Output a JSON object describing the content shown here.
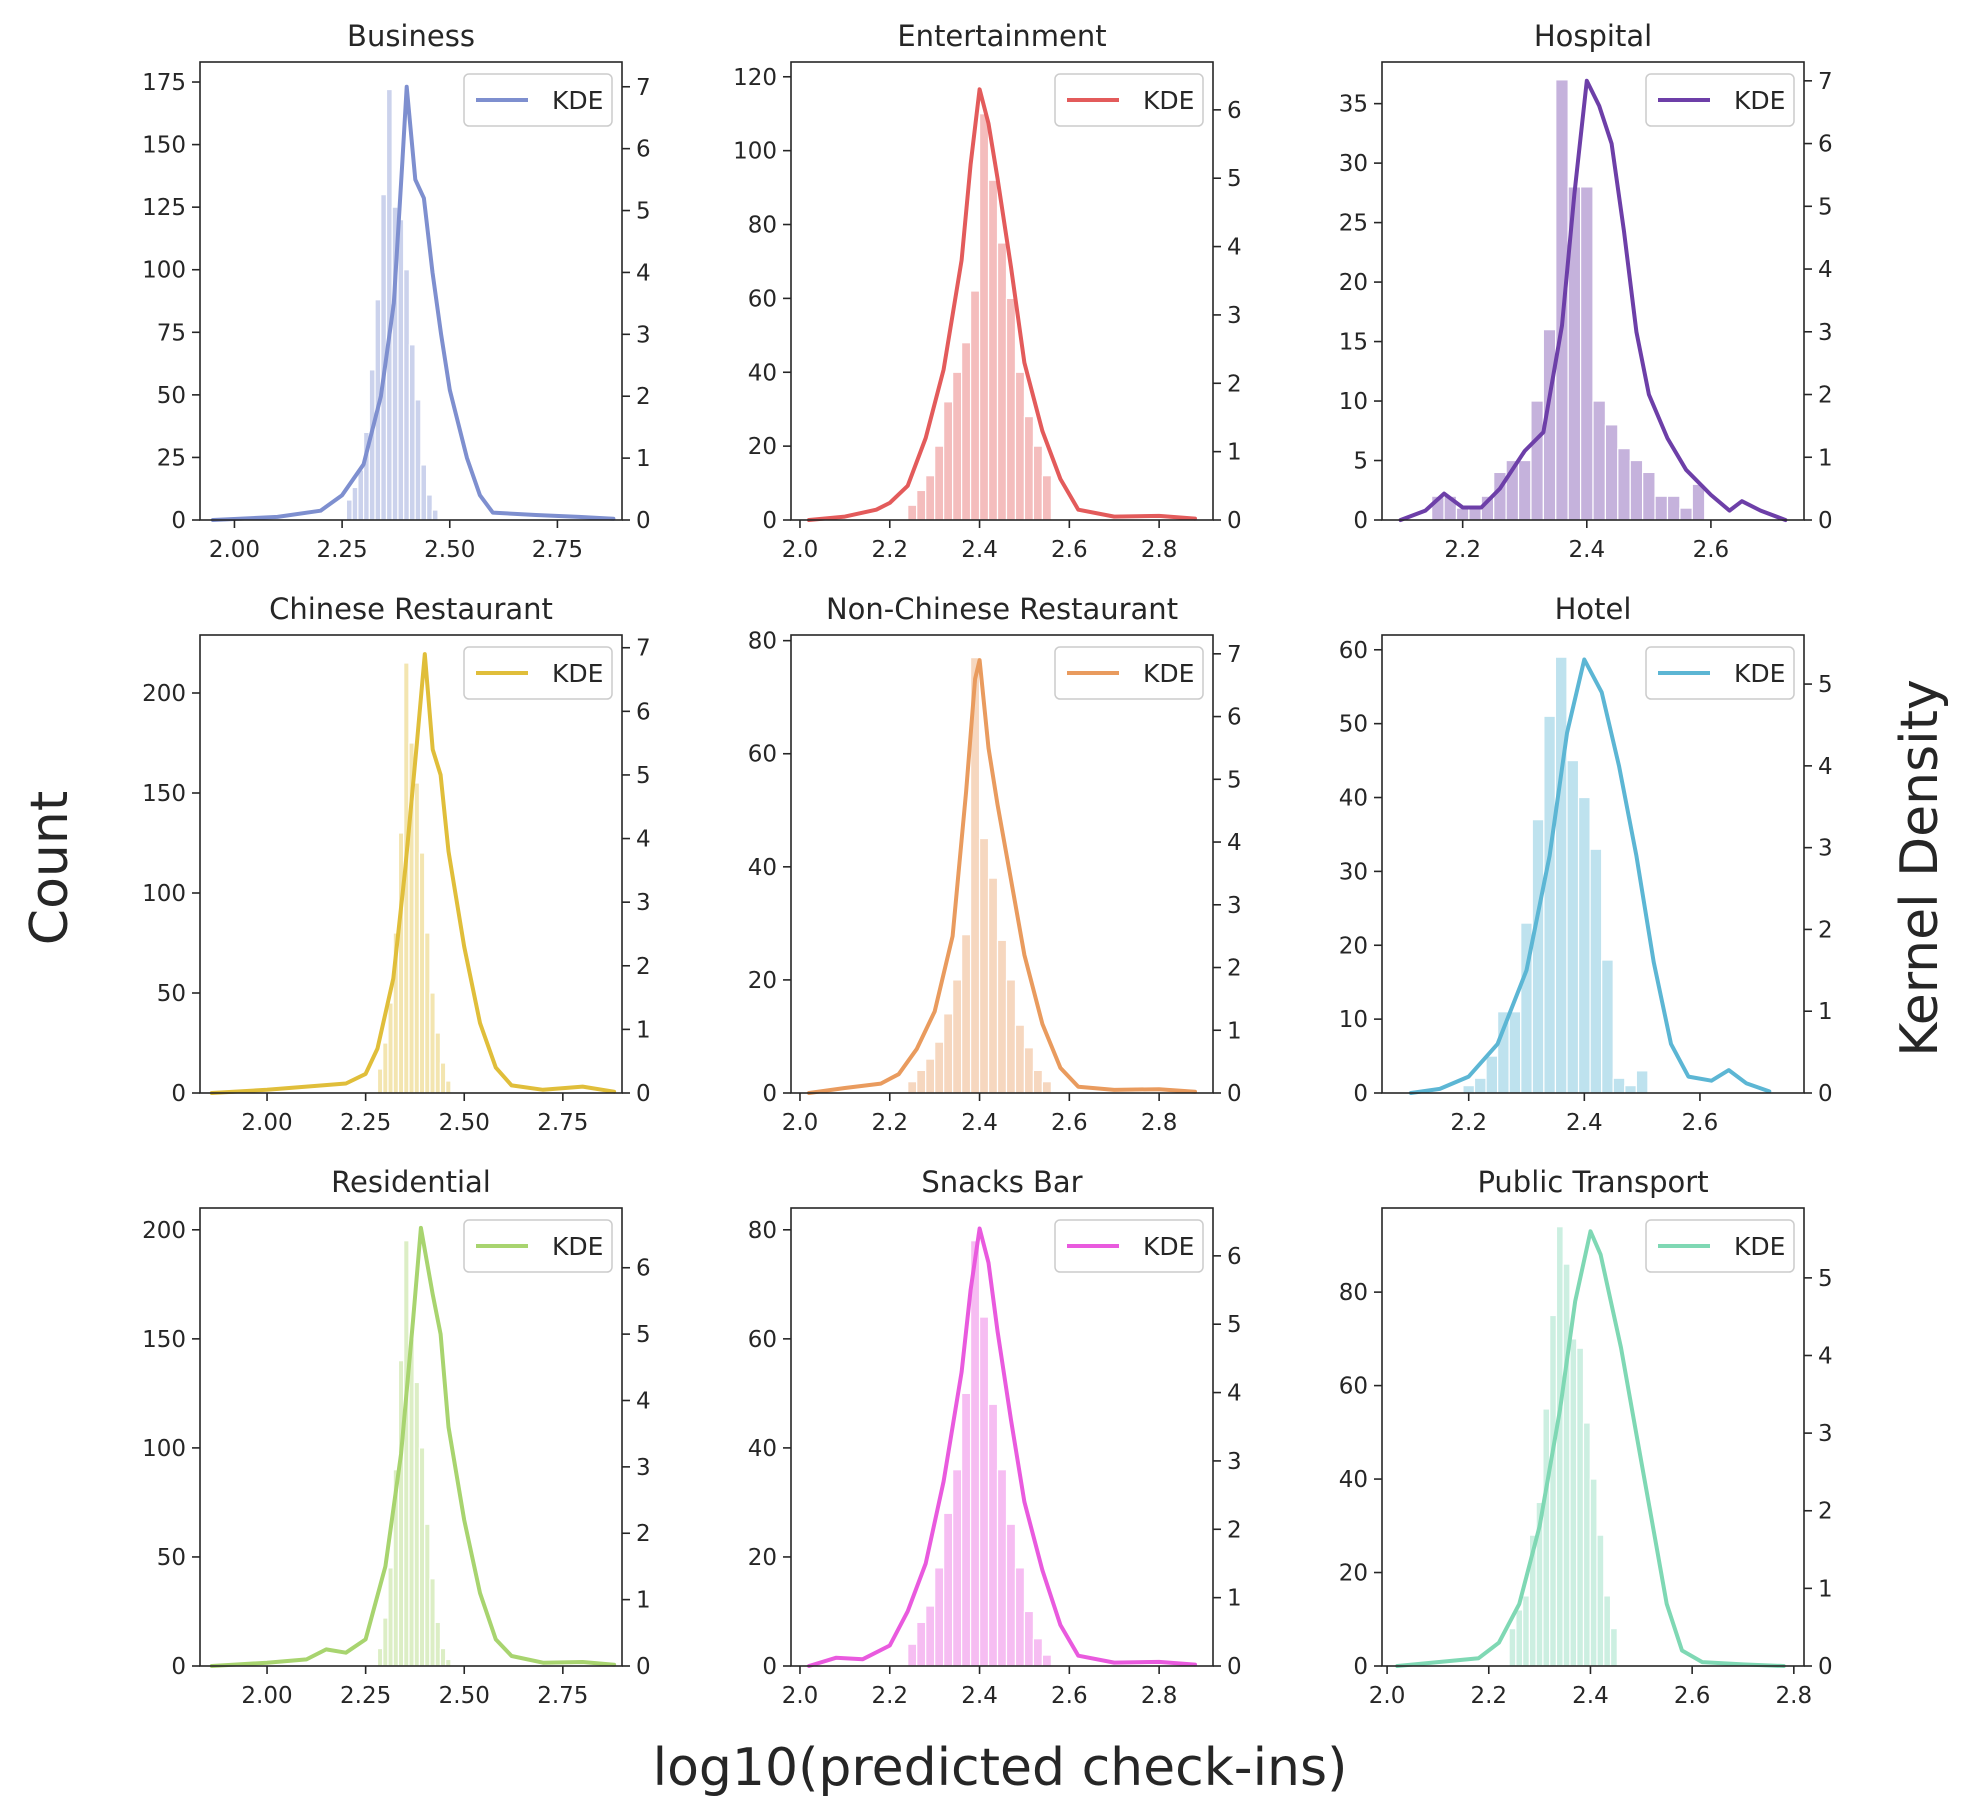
{
  "figure": {
    "ylabel_left": "Count",
    "ylabel_right": "Kernel Density",
    "xlabel": "log10(predicted check-ins)",
    "legend_label": "KDE",
    "legend_placement": "top-right"
  },
  "chart_data": [
    {
      "type": "bar",
      "title": "Business",
      "color": "#7e8fcf",
      "xlim": [
        1.92,
        2.9
      ],
      "xticks": [
        2.0,
        2.25,
        2.5,
        2.75
      ],
      "xtick_labels": [
        "2.00",
        "2.25",
        "2.50",
        "2.75"
      ],
      "ylim": [
        0,
        183
      ],
      "yticks": [
        0,
        25,
        50,
        75,
        100,
        125,
        150,
        175
      ],
      "y2lim": [
        0,
        7.4
      ],
      "y2ticks": [
        0,
        1,
        2,
        3,
        4,
        5,
        6,
        7
      ],
      "bin_start": 2.26,
      "bin_width": 0.0133,
      "counts": [
        8,
        13,
        20,
        35,
        60,
        88,
        130,
        172,
        125,
        120,
        100,
        70,
        48,
        22,
        10,
        4
      ],
      "kde_x": [
        1.95,
        2.1,
        2.2,
        2.25,
        2.3,
        2.34,
        2.37,
        2.39,
        2.4,
        2.42,
        2.44,
        2.46,
        2.48,
        2.5,
        2.54,
        2.57,
        2.6,
        2.7,
        2.8,
        2.88
      ],
      "kde_y": [
        0,
        0.05,
        0.15,
        0.4,
        0.9,
        2.0,
        3.5,
        5.8,
        7.0,
        5.5,
        5.2,
        4.0,
        3.0,
        2.1,
        1.0,
        0.4,
        0.12,
        0.08,
        0.05,
        0.02
      ]
    },
    {
      "type": "bar",
      "title": "Entertainment",
      "color": "#e35b5b",
      "xlim": [
        1.98,
        2.92
      ],
      "xticks": [
        2.0,
        2.2,
        2.4,
        2.6,
        2.8
      ],
      "xtick_labels": [
        "2.0",
        "2.2",
        "2.4",
        "2.6",
        "2.8"
      ],
      "ylim": [
        0,
        124
      ],
      "yticks": [
        0,
        20,
        40,
        60,
        80,
        100,
        120
      ],
      "y2lim": [
        0,
        6.7
      ],
      "y2ticks": [
        0,
        1,
        2,
        3,
        4,
        5,
        6
      ],
      "bin_start": 2.24,
      "bin_width": 0.02,
      "counts": [
        4,
        8,
        12,
        20,
        32,
        40,
        48,
        62,
        110,
        92,
        75,
        60,
        40,
        28,
        20,
        12
      ],
      "kde_x": [
        2.02,
        2.1,
        2.17,
        2.2,
        2.24,
        2.28,
        2.32,
        2.36,
        2.38,
        2.4,
        2.42,
        2.44,
        2.47,
        2.5,
        2.54,
        2.58,
        2.62,
        2.7,
        2.8,
        2.88
      ],
      "kde_y": [
        0,
        0.05,
        0.15,
        0.25,
        0.5,
        1.2,
        2.2,
        3.8,
        5.2,
        6.3,
        5.8,
        5.0,
        3.7,
        2.3,
        1.3,
        0.6,
        0.15,
        0.05,
        0.06,
        0.02
      ]
    },
    {
      "type": "bar",
      "title": "Hospital",
      "color": "#6d3fa8",
      "xlim": [
        2.07,
        2.75
      ],
      "xticks": [
        2.2,
        2.4,
        2.6
      ],
      "xtick_labels": [
        "2.2",
        "2.4",
        "2.6"
      ],
      "ylim": [
        0,
        38.5
      ],
      "yticks": [
        0,
        5,
        10,
        15,
        20,
        25,
        30,
        35
      ],
      "y2lim": [
        0,
        7.3
      ],
      "y2ticks": [
        0,
        1,
        2,
        3,
        4,
        5,
        6,
        7
      ],
      "bin_start": 2.15,
      "bin_width": 0.02,
      "counts": [
        2,
        2,
        1,
        1,
        2,
        4,
        5,
        5,
        10,
        16,
        37,
        28,
        28,
        10,
        8,
        6,
        5,
        4,
        2,
        2,
        1,
        3
      ],
      "kde_x": [
        2.1,
        2.14,
        2.17,
        2.2,
        2.23,
        2.26,
        2.3,
        2.33,
        2.36,
        2.38,
        2.4,
        2.42,
        2.44,
        2.46,
        2.48,
        2.5,
        2.53,
        2.56,
        2.6,
        2.63,
        2.65,
        2.68,
        2.72
      ],
      "kde_y": [
        0,
        0.15,
        0.42,
        0.2,
        0.2,
        0.5,
        1.1,
        1.4,
        3.1,
        5.2,
        7.0,
        6.6,
        6.0,
        4.6,
        3.0,
        2.0,
        1.3,
        0.8,
        0.4,
        0.15,
        0.3,
        0.15,
        0
      ]
    },
    {
      "type": "bar",
      "title": "Chinese Restaurant",
      "color": "#e0be3a",
      "xlim": [
        1.83,
        2.9
      ],
      "xticks": [
        2.0,
        2.25,
        2.5,
        2.75
      ],
      "xtick_labels": [
        "2.00",
        "2.25",
        "2.50",
        "2.75"
      ],
      "ylim": [
        0,
        229
      ],
      "yticks": [
        0,
        50,
        100,
        150,
        200
      ],
      "y2lim": [
        0,
        7.2
      ],
      "y2ticks": [
        0,
        1,
        2,
        3,
        4,
        5,
        6,
        7
      ],
      "bin_start": 2.28,
      "bin_width": 0.0133,
      "counts": [
        12,
        25,
        45,
        80,
        130,
        215,
        175,
        155,
        120,
        80,
        50,
        30,
        15,
        6
      ],
      "kde_x": [
        1.86,
        2.0,
        2.1,
        2.2,
        2.25,
        2.28,
        2.32,
        2.35,
        2.38,
        2.4,
        2.42,
        2.44,
        2.46,
        2.5,
        2.54,
        2.58,
        2.62,
        2.7,
        2.8,
        2.88
      ],
      "kde_y": [
        0,
        0.05,
        0.1,
        0.15,
        0.3,
        0.7,
        1.8,
        3.5,
        5.5,
        6.9,
        5.4,
        5.0,
        3.8,
        2.3,
        1.1,
        0.4,
        0.12,
        0.05,
        0.1,
        0.02
      ]
    },
    {
      "type": "bar",
      "title": "Non-Chinese Restaurant",
      "color": "#e99b5e",
      "xlim": [
        1.98,
        2.92
      ],
      "xticks": [
        2.0,
        2.2,
        2.4,
        2.6,
        2.8
      ],
      "xtick_labels": [
        "2.0",
        "2.2",
        "2.4",
        "2.6",
        "2.8"
      ],
      "ylim": [
        0,
        81
      ],
      "yticks": [
        0,
        20,
        40,
        60,
        80
      ],
      "y2lim": [
        0,
        7.3
      ],
      "y2ticks": [
        0,
        1,
        2,
        3,
        4,
        5,
        6,
        7
      ],
      "bin_start": 2.24,
      "bin_width": 0.02,
      "counts": [
        2,
        4,
        6,
        9,
        14,
        20,
        28,
        77,
        45,
        38,
        27,
        20,
        12,
        8,
        4,
        2
      ],
      "kde_x": [
        2.02,
        2.1,
        2.18,
        2.22,
        2.26,
        2.3,
        2.34,
        2.37,
        2.39,
        2.4,
        2.42,
        2.44,
        2.47,
        2.5,
        2.54,
        2.58,
        2.62,
        2.7,
        2.8,
        2.88
      ],
      "kde_y": [
        0,
        0.08,
        0.15,
        0.3,
        0.7,
        1.3,
        2.5,
        4.8,
        6.6,
        6.9,
        5.5,
        4.6,
        3.4,
        2.2,
        1.1,
        0.4,
        0.1,
        0.05,
        0.06,
        0.02
      ]
    },
    {
      "type": "bar",
      "title": "Hotel",
      "color": "#5cb6d4",
      "xlim": [
        2.05,
        2.78
      ],
      "xticks": [
        2.2,
        2.4,
        2.6
      ],
      "xtick_labels": [
        "2.2",
        "2.4",
        "2.6"
      ],
      "ylim": [
        0,
        62
      ],
      "yticks": [
        0,
        10,
        20,
        30,
        40,
        50,
        60
      ],
      "y2lim": [
        0,
        5.6
      ],
      "y2ticks": [
        0,
        1,
        2,
        3,
        4,
        5
      ],
      "bin_start": 2.19,
      "bin_width": 0.02,
      "counts": [
        1,
        2,
        5,
        11,
        11,
        23,
        37,
        51,
        59,
        45,
        40,
        33,
        18,
        2,
        1,
        3
      ],
      "kde_x": [
        2.1,
        2.15,
        2.2,
        2.25,
        2.3,
        2.34,
        2.37,
        2.4,
        2.43,
        2.46,
        2.49,
        2.52,
        2.55,
        2.58,
        2.62,
        2.65,
        2.68,
        2.72
      ],
      "kde_y": [
        0,
        0.05,
        0.2,
        0.6,
        1.5,
        2.9,
        4.4,
        5.3,
        4.9,
        4.0,
        2.9,
        1.6,
        0.6,
        0.2,
        0.15,
        0.28,
        0.12,
        0.02
      ]
    },
    {
      "type": "bar",
      "title": "Residential",
      "color": "#a8d46f",
      "xlim": [
        1.83,
        2.9
      ],
      "xticks": [
        2.0,
        2.25,
        2.5,
        2.75
      ],
      "xtick_labels": [
        "2.00",
        "2.25",
        "2.50",
        "2.75"
      ],
      "ylim": [
        0,
        210
      ],
      "yticks": [
        0,
        50,
        100,
        150,
        200
      ],
      "y2lim": [
        0,
        6.9
      ],
      "y2ticks": [
        0,
        1,
        2,
        3,
        4,
        5,
        6
      ],
      "bin_start": 2.28,
      "bin_width": 0.0133,
      "counts": [
        8,
        22,
        45,
        90,
        140,
        195,
        150,
        130,
        100,
        65,
        40,
        20,
        8,
        3
      ],
      "kde_x": [
        1.86,
        2.0,
        2.1,
        2.15,
        2.2,
        2.25,
        2.3,
        2.34,
        2.37,
        2.39,
        2.42,
        2.44,
        2.46,
        2.5,
        2.54,
        2.58,
        2.62,
        2.7,
        2.8,
        2.88
      ],
      "kde_y": [
        0,
        0.05,
        0.1,
        0.25,
        0.2,
        0.4,
        1.5,
        3.2,
        5.2,
        6.6,
        5.6,
        5.0,
        3.6,
        2.2,
        1.1,
        0.4,
        0.15,
        0.05,
        0.06,
        0.02
      ]
    },
    {
      "type": "bar",
      "title": "Snacks Bar",
      "color": "#e95ade",
      "xlim": [
        1.98,
        2.92
      ],
      "xticks": [
        2.0,
        2.2,
        2.4,
        2.6,
        2.8
      ],
      "xtick_labels": [
        "2.0",
        "2.2",
        "2.4",
        "2.6",
        "2.8"
      ],
      "ylim": [
        0,
        84
      ],
      "yticks": [
        0,
        20,
        40,
        60,
        80
      ],
      "y2lim": [
        0,
        6.7
      ],
      "y2ticks": [
        0,
        1,
        2,
        3,
        4,
        5,
        6
      ],
      "bin_start": 2.24,
      "bin_width": 0.02,
      "counts": [
        4,
        8,
        11,
        18,
        28,
        36,
        50,
        78,
        64,
        48,
        36,
        26,
        18,
        10,
        5,
        2
      ],
      "kde_x": [
        2.02,
        2.08,
        2.14,
        2.2,
        2.24,
        2.28,
        2.32,
        2.36,
        2.38,
        2.4,
        2.42,
        2.44,
        2.47,
        2.5,
        2.54,
        2.58,
        2.62,
        2.7,
        2.8,
        2.88
      ],
      "kde_y": [
        0,
        0.12,
        0.1,
        0.3,
        0.8,
        1.5,
        2.7,
        4.3,
        5.5,
        6.4,
        5.9,
        4.9,
        3.6,
        2.4,
        1.4,
        0.6,
        0.15,
        0.05,
        0.06,
        0.02
      ]
    },
    {
      "type": "bar",
      "title": "Public Transport",
      "color": "#7fd8b4",
      "xlim": [
        1.99,
        2.82
      ],
      "xticks": [
        2.0,
        2.2,
        2.4,
        2.6,
        2.8
      ],
      "xtick_labels": [
        "2.0",
        "2.2",
        "2.4",
        "2.6",
        "2.8"
      ],
      "ylim": [
        0,
        98
      ],
      "yticks": [
        0,
        20,
        40,
        60,
        80
      ],
      "y2lim": [
        0,
        5.9
      ],
      "y2ticks": [
        0,
        1,
        2,
        3,
        4,
        5
      ],
      "bin_start": 2.24,
      "bin_width": 0.0133,
      "counts": [
        8,
        12,
        15,
        28,
        35,
        55,
        75,
        94,
        86,
        70,
        68,
        52,
        40,
        28,
        15,
        8
      ],
      "kde_x": [
        2.02,
        2.1,
        2.18,
        2.22,
        2.26,
        2.3,
        2.34,
        2.37,
        2.4,
        2.42,
        2.44,
        2.46,
        2.49,
        2.52,
        2.55,
        2.58,
        2.62,
        2.7,
        2.78
      ],
      "kde_y": [
        0,
        0.05,
        0.1,
        0.3,
        0.8,
        1.8,
        3.3,
        4.7,
        5.6,
        5.3,
        4.7,
        4.1,
        3.0,
        1.9,
        0.8,
        0.2,
        0.05,
        0.02,
        0
      ]
    }
  ]
}
